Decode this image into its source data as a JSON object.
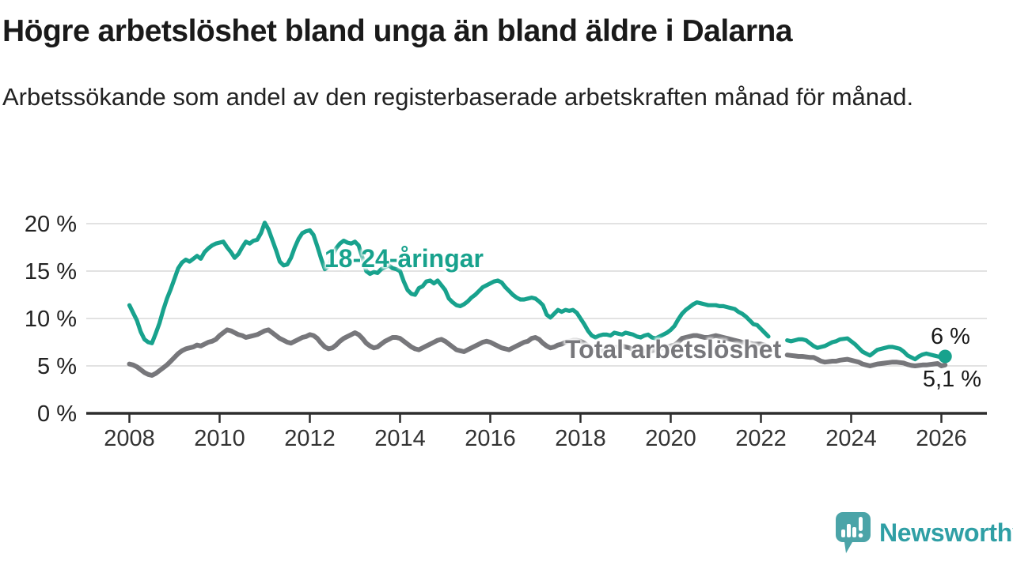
{
  "header": {
    "title": "Högre arbetslöshet bland unga än bland äldre i Dalarna",
    "subtitle": "Arbetssökande som andel av den registerbaserade arbetskraften månad för månad."
  },
  "footer": {
    "brand": "Newsworthy",
    "logo_icon": "newsworthy-speech-bubble-bar-chart-icon"
  },
  "colors": {
    "youth_line": "#18a28d",
    "total_line": "#77777b",
    "axis": "#2d2d2d",
    "grid": "#d9d9d9",
    "tick_text": "#333333",
    "text": "#1a1a1a",
    "logo_bubble": "#4ba4a8",
    "logo_text": "#2f9fa5"
  },
  "chart_data": {
    "type": "line",
    "title": "Högre arbetslöshet bland unga än bland äldre i Dalarna",
    "subtitle": "Arbetssökande som andel av den registerbaserade arbetskraften månad för månad.",
    "unit": "%",
    "frequency": "monthly",
    "start_year": 2008,
    "start_month": 1,
    "data_gap": "apr 2022 - jul 2022",
    "grid": true,
    "x_axis": {
      "ticks": [
        {
          "v": 2008,
          "label": "2008"
        },
        {
          "v": 2010,
          "label": "2010"
        },
        {
          "v": 2012,
          "label": "2012"
        },
        {
          "v": 2014,
          "label": "2014"
        },
        {
          "v": 2016,
          "label": "2016"
        },
        {
          "v": 2018,
          "label": "2018"
        },
        {
          "v": 2020,
          "label": "2020"
        },
        {
          "v": 2022,
          "label": "2022"
        },
        {
          "v": 2024,
          "label": "2024"
        },
        {
          "v": 2026,
          "label": "2026"
        }
      ],
      "range": [
        2007.06,
        2026.46
      ]
    },
    "y_axis": {
      "ticks": [
        {
          "v": 0,
          "label": "0 %"
        },
        {
          "v": 5,
          "label": "5 %"
        },
        {
          "v": 10,
          "label": "10 %"
        },
        {
          "v": 15,
          "label": "15 %"
        },
        {
          "v": 20,
          "label": "20 %"
        }
      ],
      "range": [
        0,
        21
      ]
    },
    "series": [
      {
        "name": "18-24-åringar",
        "color": "#18a28d",
        "end_label": "6 %",
        "end_dot": true,
        "values": [
          11.4,
          10.6,
          9.8,
          8.6,
          7.8,
          7.5,
          7.4,
          8.4,
          9.5,
          10.9,
          12.1,
          13.1,
          14.2,
          15.3,
          15.9,
          16.2,
          16.0,
          16.3,
          16.6,
          16.3,
          17.0,
          17.4,
          17.7,
          17.9,
          18.0,
          18.1,
          17.5,
          17.0,
          16.4,
          16.8,
          17.5,
          18.1,
          17.9,
          18.2,
          18.3,
          19.0,
          20.1,
          19.4,
          18.3,
          17.2,
          16.0,
          15.6,
          15.7,
          16.4,
          17.5,
          18.4,
          19.0,
          19.2,
          19.3,
          18.8,
          17.6,
          16.3,
          15.2,
          15.5,
          16.6,
          17.4,
          17.9,
          18.2,
          18.0,
          17.9,
          18.1,
          17.7,
          16.4,
          15.0,
          14.7,
          14.9,
          14.8,
          15.2,
          15.4,
          15.6,
          15.3,
          15.2,
          15.0,
          13.9,
          13.0,
          12.6,
          12.5,
          13.2,
          13.4,
          13.9,
          14.0,
          13.7,
          14.0,
          13.5,
          13.0,
          12.1,
          11.7,
          11.4,
          11.3,
          11.5,
          11.8,
          12.2,
          12.5,
          12.9,
          13.3,
          13.5,
          13.7,
          13.9,
          14.0,
          13.8,
          13.3,
          12.9,
          12.5,
          12.2,
          12.0,
          12.0,
          12.1,
          12.2,
          12.1,
          11.8,
          11.4,
          10.4,
          10.1,
          10.5,
          10.9,
          10.7,
          10.9,
          10.8,
          10.9,
          10.6,
          10.0,
          9.4,
          8.7,
          8.2,
          8.0,
          8.2,
          8.3,
          8.3,
          8.2,
          8.5,
          8.4,
          8.3,
          8.5,
          8.4,
          8.3,
          8.1,
          8.0,
          8.2,
          8.3,
          8.0,
          7.9,
          8.1,
          8.3,
          8.5,
          8.8,
          9.2,
          9.9,
          10.5,
          10.9,
          11.2,
          11.5,
          11.7,
          11.6,
          11.5,
          11.4,
          11.4,
          11.4,
          11.3,
          11.3,
          11.2,
          11.1,
          11.0,
          10.7,
          10.5,
          10.2,
          9.8,
          9.4,
          9.3,
          8.9,
          8.5,
          8.1,
          null,
          null,
          null,
          null,
          7.7,
          7.6,
          7.7,
          7.8,
          7.8,
          7.7,
          7.4,
          7.1,
          6.9,
          7.0,
          7.1,
          7.3,
          7.5,
          7.6,
          7.8,
          7.85,
          7.9,
          7.6,
          7.3,
          6.9,
          6.5,
          6.3,
          6.1,
          6.4,
          6.7,
          6.8,
          6.9,
          7.0,
          7.0,
          6.9,
          6.8,
          6.5,
          6.1,
          5.9,
          5.7,
          6.0,
          6.2,
          6.3,
          6.2,
          6.1,
          6.0,
          5.9,
          6.0
        ]
      },
      {
        "name": "Total arbetslöshet",
        "color": "#77777b",
        "end_label": "5,1 %",
        "end_dot": false,
        "values": [
          5.2,
          5.1,
          4.9,
          4.6,
          4.3,
          4.1,
          4.0,
          4.2,
          4.5,
          4.8,
          5.1,
          5.5,
          5.9,
          6.3,
          6.6,
          6.8,
          6.9,
          7.0,
          7.2,
          7.1,
          7.3,
          7.5,
          7.6,
          7.8,
          8.2,
          8.5,
          8.8,
          8.7,
          8.5,
          8.3,
          8.2,
          8.0,
          8.1,
          8.2,
          8.3,
          8.5,
          8.7,
          8.8,
          8.5,
          8.2,
          7.9,
          7.7,
          7.5,
          7.4,
          7.6,
          7.8,
          8.0,
          8.1,
          8.3,
          8.2,
          7.9,
          7.4,
          7.0,
          6.8,
          6.9,
          7.2,
          7.6,
          7.9,
          8.1,
          8.3,
          8.5,
          8.3,
          7.9,
          7.4,
          7.1,
          6.9,
          7.0,
          7.3,
          7.6,
          7.8,
          8.0,
          8.0,
          7.9,
          7.6,
          7.3,
          7.0,
          6.8,
          6.7,
          6.9,
          7.1,
          7.3,
          7.5,
          7.7,
          7.8,
          7.6,
          7.3,
          7.0,
          6.7,
          6.6,
          6.5,
          6.7,
          6.9,
          7.1,
          7.3,
          7.5,
          7.6,
          7.5,
          7.3,
          7.1,
          6.9,
          6.8,
          6.7,
          6.9,
          7.1,
          7.3,
          7.5,
          7.6,
          7.9,
          8.0,
          7.8,
          7.4,
          7.1,
          6.9,
          7.0,
          7.2,
          7.3,
          7.5,
          7.6,
          7.7,
          7.7,
          7.6,
          7.4,
          7.1,
          6.8,
          6.6,
          6.5,
          6.6,
          6.7,
          6.8,
          6.9,
          7.0,
          7.1,
          7.0,
          6.9,
          6.7,
          6.5,
          6.4,
          6.5,
          6.6,
          6.6,
          6.7,
          6.8,
          6.9,
          7.0,
          7.1,
          7.2,
          7.5,
          7.9,
          8.0,
          8.1,
          8.2,
          8.2,
          8.1,
          8.0,
          8.0,
          8.1,
          8.2,
          8.1,
          8.0,
          7.9,
          7.8,
          7.7,
          7.6,
          7.5,
          7.4,
          7.4,
          7.3,
          7.3,
          7.3,
          7.2,
          6.7,
          null,
          null,
          null,
          null,
          6.15,
          6.1,
          6.05,
          6.0,
          6.0,
          5.95,
          5.9,
          5.9,
          5.7,
          5.5,
          5.4,
          5.45,
          5.5,
          5.5,
          5.6,
          5.65,
          5.7,
          5.6,
          5.5,
          5.4,
          5.2,
          5.1,
          5.0,
          5.1,
          5.2,
          5.25,
          5.3,
          5.35,
          5.4,
          5.4,
          5.35,
          5.3,
          5.15,
          5.05,
          5.0,
          5.05,
          5.1,
          5.1,
          5.15,
          5.2,
          5.25,
          5.0,
          5.1
        ]
      }
    ]
  }
}
